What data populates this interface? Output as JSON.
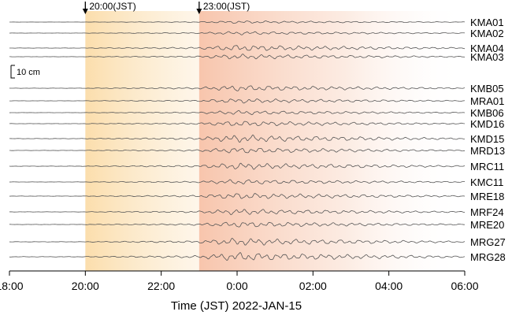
{
  "chart_data": {
    "type": "line",
    "title": "",
    "xlabel": "Time (JST)  2022-JAN-15",
    "ylabel": "",
    "x_ticks": [
      "18:00",
      "20:00",
      "22:00",
      "0:00",
      "02:00",
      "04:00",
      "06:00"
    ],
    "x_range_hours": [
      18,
      30
    ],
    "markers": [
      {
        "label": "20:00(JST)",
        "hour": 20
      },
      {
        "label": "23:00(JST)",
        "hour": 23
      }
    ],
    "scale_bar": {
      "label": "10 cm"
    },
    "shaded_periods": [
      {
        "start_hour": 20,
        "end_hour": 23,
        "color": "#fbdca8"
      },
      {
        "start_hour": 23,
        "end_hour": 30,
        "color": "#f7c2a8"
      }
    ],
    "series": [
      {
        "name": "KMA01",
        "group": 0
      },
      {
        "name": "KMA02",
        "group": 0
      },
      {
        "name": "KMA04",
        "group": 0
      },
      {
        "name": "KMA03",
        "group": 0
      },
      {
        "name": "KMB05",
        "group": 1
      },
      {
        "name": "MRA01",
        "group": 1
      },
      {
        "name": "KMB06",
        "group": 1
      },
      {
        "name": "KMD16",
        "group": 1
      },
      {
        "name": "KMD15",
        "group": 1
      },
      {
        "name": "MRD13",
        "group": 1
      },
      {
        "name": "MRC11",
        "group": 1
      },
      {
        "name": "KMC11",
        "group": 1
      },
      {
        "name": "MRE18",
        "group": 1
      },
      {
        "name": "MRF24",
        "group": 1
      },
      {
        "name": "MRE20",
        "group": 1
      },
      {
        "name": "MRG27",
        "group": 1
      },
      {
        "name": "MRG28",
        "group": 1
      }
    ],
    "colors": {
      "trace": "#555555",
      "early_wave": "#fbdca8",
      "main_wave": "#f7c2a8"
    }
  }
}
